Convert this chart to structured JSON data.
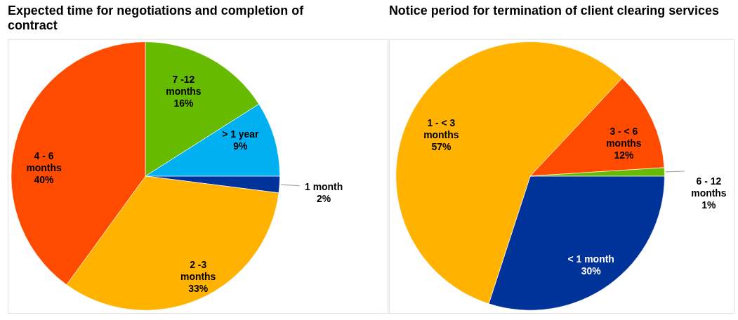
{
  "chart_data": [
    {
      "type": "pie",
      "title": "Expected time for negotiations and completion of contract",
      "categories": [
        "1 month",
        "2 -3 months",
        "4 - 6 months",
        "7 -12 months",
        "> 1 year"
      ],
      "values": [
        2,
        33,
        40,
        16,
        9
      ],
      "colors": [
        "#003399",
        "#FFB300",
        "#FF4B00",
        "#66BB00",
        "#00B0F0"
      ],
      "value_labels": [
        "2%",
        "33%",
        "40%",
        "16%",
        "9%"
      ]
    },
    {
      "type": "pie",
      "title": "Notice period for termination of client clearing services",
      "categories": [
        "< 1 month",
        "1 - < 3 months",
        "3 - < 6 months",
        "6 - 12 months"
      ],
      "values": [
        30,
        57,
        12,
        1
      ],
      "colors": [
        "#003399",
        "#FFB300",
        "#FF4B00",
        "#66BB00"
      ],
      "value_labels": [
        "30%",
        "57%",
        "12%",
        "1%"
      ]
    }
  ]
}
